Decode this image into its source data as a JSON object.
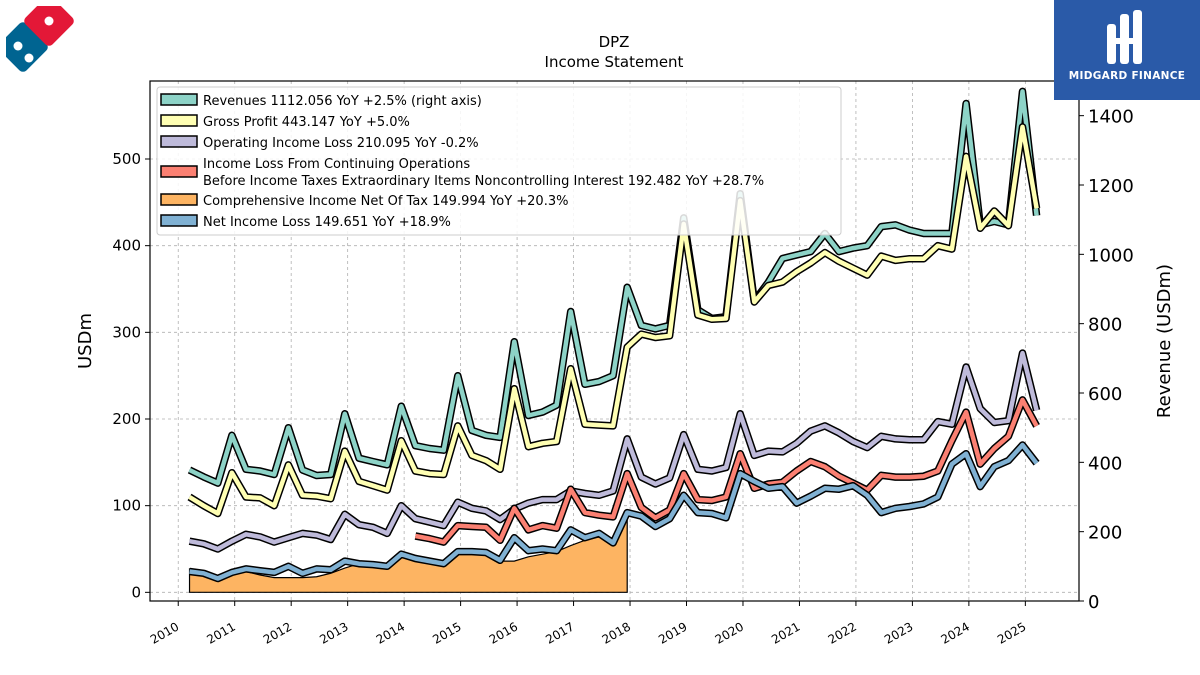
{
  "chart_data": {
    "type": "line",
    "title": "DPZ",
    "subtitle": "Income Statement",
    "ylabel": "USDm",
    "y2label": "Revenue (USDm)",
    "ylim": [
      -10,
      590
    ],
    "y2lim": [
      0,
      1500
    ],
    "yticks": [
      0,
      100,
      200,
      300,
      400,
      500
    ],
    "y2ticks": [
      0,
      200,
      400,
      600,
      800,
      1000,
      1200,
      1400
    ],
    "xlim": [
      2009.5,
      2025.95
    ],
    "xticks": [
      "2010",
      "2011",
      "2012",
      "2013",
      "2014",
      "2015",
      "2016",
      "2017",
      "2018",
      "2019",
      "2020",
      "2021",
      "2022",
      "2023",
      "2024",
      "2025"
    ],
    "grid": true,
    "legend_position": "top-left",
    "x": [
      2010.2,
      2010.45,
      2010.7,
      2010.95,
      2011.2,
      2011.45,
      2011.7,
      2011.95,
      2012.2,
      2012.45,
      2012.7,
      2012.95,
      2013.2,
      2013.45,
      2013.7,
      2013.95,
      2014.2,
      2014.45,
      2014.7,
      2014.95,
      2015.2,
      2015.45,
      2015.7,
      2015.95,
      2016.2,
      2016.45,
      2016.7,
      2016.95,
      2017.2,
      2017.45,
      2017.7,
      2017.95,
      2018.2,
      2018.45,
      2018.7,
      2018.95,
      2019.2,
      2019.45,
      2019.7,
      2019.95,
      2020.2,
      2020.45,
      2020.7,
      2020.95,
      2021.2,
      2021.45,
      2021.7,
      2021.95,
      2022.2,
      2022.45,
      2022.7,
      2022.95,
      2023.2,
      2023.45,
      2023.7,
      2023.95,
      2024.2,
      2024.45,
      2024.7,
      2024.95,
      2025.2
    ],
    "series": [
      {
        "name": "Revenues",
        "legend": "Revenues  1112.056 YoY +2.5% (right axis)",
        "axis": "right",
        "color": "#8dd3c7",
        "values": [
          378,
          358,
          340,
          478,
          380,
          375,
          365,
          500,
          378,
          362,
          365,
          540,
          412,
          402,
          393,
          562,
          448,
          440,
          435,
          650,
          492,
          478,
          472,
          748,
          535,
          545,
          565,
          835,
          625,
          633,
          650,
          905,
          795,
          785,
          795,
          1105,
          840,
          815,
          820,
          1175,
          865,
          920,
          988,
          998,
          1008,
          1060,
          1008,
          1018,
          1025,
          1080,
          1085,
          1070,
          1060,
          1060,
          1060,
          1435,
          1085,
          1095,
          1085,
          1470,
          1112
        ]
      },
      {
        "name": "Gross Profit",
        "legend": "Gross Profit  443.147 YoY +5.0%",
        "axis": "left",
        "color": "#ffffb3",
        "values": [
          110,
          100,
          91,
          138,
          110,
          109,
          100,
          147,
          112,
          111,
          108,
          163,
          128,
          123,
          118,
          175,
          140,
          137,
          136,
          192,
          158,
          152,
          142,
          235,
          168,
          172,
          174,
          258,
          194,
          193,
          192,
          283,
          298,
          294,
          296,
          425,
          320,
          315,
          316,
          452,
          335,
          354,
          358,
          370,
          380,
          392,
          382,
          374,
          366,
          388,
          383,
          385,
          385,
          400,
          396,
          503,
          420,
          440,
          423,
          537,
          443
        ]
      },
      {
        "name": "Operating Income Loss",
        "legend": "Operating Income Loss  210.095 YoY -0.2%",
        "axis": "left",
        "color": "#bebada",
        "values": [
          59,
          56,
          50,
          59,
          67,
          64,
          58,
          63,
          68,
          66,
          61,
          90,
          78,
          75,
          68,
          100,
          85,
          81,
          77,
          104,
          97,
          94,
          84,
          96,
          103,
          107,
          107,
          117,
          114,
          112,
          117,
          177,
          133,
          125,
          132,
          182,
          142,
          140,
          144,
          206,
          158,
          163,
          162,
          172,
          186,
          192,
          184,
          174,
          167,
          180,
          177,
          176,
          176,
          197,
          194,
          260,
          212,
          196,
          198,
          276,
          210
        ]
      },
      {
        "name": "Income Loss From Continuing Operations Before Income Taxes Extraordinary Items Noncontrolling Interest",
        "legend": "Income Loss From Continuing Operations",
        "legend2": "Before Income Taxes Extraordinary Items Noncontrolling Interest  192.482 YoY +28.7%",
        "axis": "left",
        "color": "#fb8072",
        "values": [
          null,
          null,
          null,
          null,
          null,
          null,
          null,
          null,
          null,
          null,
          null,
          null,
          null,
          null,
          null,
          null,
          65,
          62,
          58,
          77,
          76,
          75,
          60,
          97,
          72,
          77,
          74,
          119,
          92,
          89,
          87,
          137,
          98,
          86,
          95,
          137,
          107,
          106,
          110,
          160,
          120,
          125,
          127,
          140,
          151,
          145,
          134,
          126,
          118,
          135,
          133,
          133,
          134,
          140,
          175,
          208,
          148,
          166,
          180,
          222,
          192
        ]
      },
      {
        "name": "Comprehensive Income Net Of Tax",
        "legend": "Comprehensive Income Net Of Tax  149.994 YoY +20.3%",
        "axis": "left",
        "color": "#fdb462",
        "values": [
          null,
          null,
          null,
          null,
          null,
          null,
          null,
          null,
          null,
          null,
          null,
          null,
          null,
          null,
          null,
          null,
          null,
          null,
          null,
          null,
          null,
          null,
          null,
          null,
          null,
          null,
          null,
          null,
          null,
          null,
          null,
          null,
          null,
          null,
          null,
          null,
          null,
          null,
          null,
          null,
          null,
          null,
          null,
          null,
          null,
          null,
          null,
          null,
          null,
          null,
          null,
          null,
          null,
          null,
          null,
          null,
          null,
          null,
          null,
          null,
          150
        ]
      },
      {
        "name": "Net Income Loss",
        "legend": "Net Income Loss  149.651 YoY +18.9%",
        "axis": "left",
        "color": "#80b1d3",
        "values": [
          24,
          22,
          16,
          23,
          27,
          25,
          23,
          30,
          22,
          27,
          26,
          36,
          33,
          32,
          30,
          44,
          39,
          36,
          33,
          47,
          47,
          46,
          37,
          63,
          48,
          50,
          48,
          72,
          63,
          68,
          57,
          92,
          88,
          76,
          85,
          112,
          92,
          91,
          86,
          137,
          128,
          120,
          122,
          103,
          111,
          120,
          119,
          123,
          112,
          92,
          97,
          99,
          102,
          110,
          148,
          160,
          122,
          145,
          152,
          170,
          149
        ]
      }
    ],
    "fill_between": {
      "from_series": "Comprehensive Income Net Of Tax",
      "x": [
        2010.2,
        2010.45,
        2010.7,
        2010.95,
        2011.2,
        2011.45,
        2011.7,
        2011.95,
        2012.2,
        2012.45,
        2012.7,
        2012.95,
        2013.2,
        2013.45,
        2013.7,
        2013.95,
        2014.2,
        2014.45,
        2014.7,
        2014.95,
        2015.2,
        2015.45,
        2015.7,
        2015.95,
        2016.2,
        2016.45,
        2016.7,
        2016.95,
        2017.2,
        2017.45,
        2017.7,
        2017.95
      ],
      "values": [
        27,
        22,
        14,
        22,
        24,
        20,
        17,
        17,
        17,
        18,
        22,
        28,
        33,
        31,
        29,
        44,
        38,
        34,
        30,
        45,
        46,
        45,
        36,
        36,
        41,
        44,
        47,
        54,
        60,
        64,
        57,
        92
      ]
    }
  },
  "branding": {
    "name": "MIDGARD FINANCE",
    "brand_color": "#2a5aa8",
    "company_logo_colors": [
      "#006491",
      "#e31837"
    ]
  }
}
